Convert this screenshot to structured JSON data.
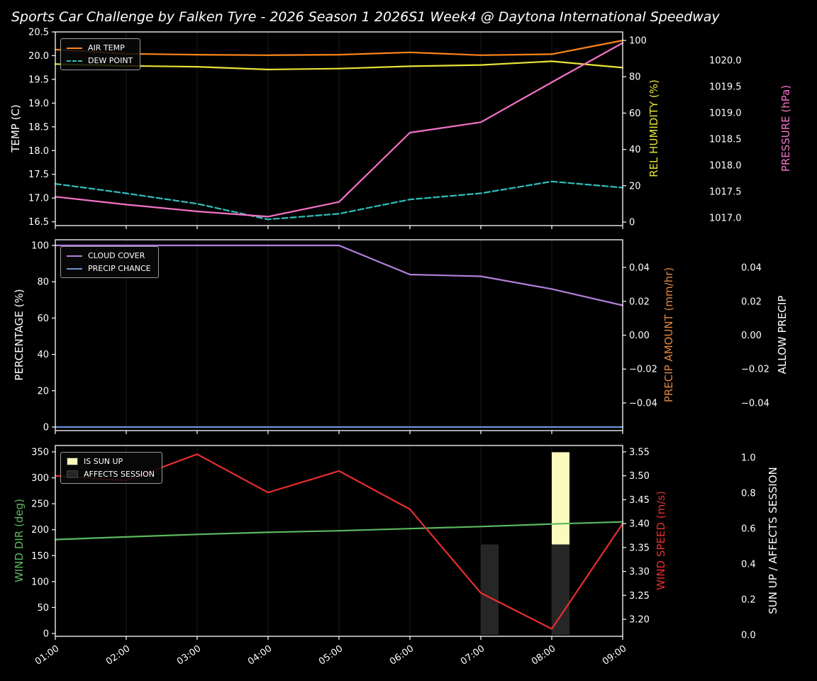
{
  "title": "Sports Car Challenge by Falken Tyre - 2026 Season 1 2026S1 Week4 @ Daytona International Speedway",
  "colors": {
    "background": "#000000",
    "text": "#ffffff",
    "frame": "#ffffff",
    "grid": "#1b1b1b"
  },
  "chart_data": {
    "type": "line",
    "x": [
      "01:00",
      "02:00",
      "03:00",
      "04:00",
      "05:00",
      "06:00",
      "07:00",
      "08:00",
      "09:00"
    ],
    "panels": [
      {
        "id": "temperature-humidity-pressure",
        "axes": {
          "left": {
            "label": "TEMP (C)",
            "color": "#ffffff",
            "range": [
              16.42,
              20.5
            ],
            "ticks": {
              "values": [
                16.5,
                17.0,
                17.5,
                18.0,
                18.5,
                19.0,
                19.5,
                20.0,
                20.5
              ],
              "labels": [
                "16.5",
                "17.0",
                "17.5",
                "18.0",
                "18.5",
                "19.0",
                "19.5",
                "20.0",
                "20.5"
              ]
            }
          },
          "right1": {
            "label": "REL HUMIDITY (%)",
            "color": "#e8e337",
            "range": [
              -1.95,
              104.69
            ],
            "ticks": {
              "values": [
                0,
                20,
                40,
                60,
                80,
                100
              ],
              "labels": [
                "0",
                "20",
                "40",
                "60",
                "80",
                "100"
              ]
            }
          },
          "right2": {
            "label": "PRESSURE (hPa)",
            "color": "#f472c6",
            "range": [
              1016.85,
              1020.54
            ],
            "ticks": {
              "values": [
                1017.0,
                1017.5,
                1018.0,
                1018.5,
                1019.0,
                1019.5,
                1020.0
              ],
              "labels": [
                "1017.0",
                "1017.5",
                "1018.0",
                "1018.5",
                "1019.0",
                "1019.5",
                "1020.0"
              ]
            }
          }
        },
        "series": [
          {
            "name": "AIR TEMP",
            "data_name": "air-temp-line",
            "axis": "left",
            "color": "#ff8519",
            "dash": false,
            "values": [
              20.13,
              20.04,
              20.02,
              20.01,
              20.02,
              20.07,
              20.01,
              20.03,
              20.32
            ]
          },
          {
            "name": "DEW POINT",
            "data_name": "dew-point-line",
            "axis": "left",
            "color": "#2fc0bc",
            "dash": true,
            "values": [
              17.3,
              17.1,
              16.88,
              16.55,
              16.67,
              16.97,
              17.1,
              17.35,
              17.22
            ]
          },
          {
            "name": "REL HUMIDITY",
            "data_name": "rel-humidity-line",
            "axis": "right1",
            "color": "#e8e337",
            "dash": false,
            "values": [
              87,
              86,
              85.5,
              84,
              84.5,
              85.8,
              86.5,
              88.5,
              85
            ]
          },
          {
            "name": "PRESSURE",
            "data_name": "pressure-line",
            "axis": "right2",
            "color": "#f472c6",
            "dash": false,
            "values": [
              1017.4,
              1017.25,
              1017.12,
              1017.02,
              1017.3,
              1018.62,
              1018.82,
              1019.58,
              1020.33
            ]
          }
        ],
        "legend": [
          {
            "label": "AIR TEMP",
            "swatch": "line",
            "color": "#ff8519",
            "dash": false
          },
          {
            "label": "DEW POINT",
            "swatch": "line",
            "color": "#2fc0bc",
            "dash": true
          }
        ]
      },
      {
        "id": "cloud-precip",
        "axes": {
          "left": {
            "label": "PERCENTAGE (%)",
            "color": "#ffffff",
            "range": [
              -1.95,
              103.12
            ],
            "ticks": {
              "values": [
                0,
                20,
                40,
                60,
                80,
                100
              ],
              "labels": [
                "0",
                "20",
                "40",
                "60",
                "80",
                "100"
              ]
            }
          },
          "right1": {
            "label": "PRECIP AMOUNT (mm/hr)",
            "color": "#e0853c",
            "range": [
              -0.05634,
              0.05634
            ],
            "ticks": {
              "values": [
                0.04,
                0.02,
                0.0,
                -0.02,
                -0.04
              ],
              "labels": [
                "0.04",
                "0.02",
                "0.00",
                "−0.02",
                "−0.04"
              ]
            }
          },
          "right2": {
            "label": "ALLOW PRECIP",
            "color": "#ffffff",
            "range": [
              -0.05634,
              0.05634
            ],
            "ticks": {
              "values": [
                0.04,
                0.02,
                0.0,
                -0.02,
                -0.04
              ],
              "labels": [
                "0.04",
                "0.02",
                "0.00",
                "−0.02",
                "−0.04"
              ]
            }
          }
        },
        "series": [
          {
            "name": "CLOUD COVER",
            "data_name": "cloud-cover-line",
            "axis": "left",
            "color": "#b17fd9",
            "dash": false,
            "values": [
              100,
              100,
              100,
              100,
              100,
              84,
              83,
              76,
              67
            ]
          },
          {
            "name": "PRECIP CHANCE",
            "data_name": "precip-chance-line",
            "axis": "left",
            "color": "#6b93d6",
            "dash": false,
            "values": [
              0,
              0,
              0,
              0,
              0,
              0,
              0,
              0,
              0
            ]
          }
        ],
        "legend": [
          {
            "label": "CLOUD COVER",
            "swatch": "line",
            "color": "#b17fd9",
            "dash": false
          },
          {
            "label": "PRECIP CHANCE",
            "swatch": "line",
            "color": "#6b93d6",
            "dash": false
          }
        ]
      },
      {
        "id": "wind-sun",
        "axes": {
          "left": {
            "label": "WIND DIR (deg)",
            "color": "#5cb85f",
            "range": [
              -5.5,
              362.3
            ],
            "ticks": {
              "values": [
                0,
                50,
                100,
                150,
                200,
                250,
                300,
                350
              ],
              "labels": [
                "0",
                "50",
                "100",
                "150",
                "200",
                "250",
                "300",
                "350"
              ]
            }
          },
          "right1": {
            "label": "WIND SPEED (m/s)",
            "color": "#e62e2e",
            "range": [
              3.1644,
              3.5633
            ],
            "ticks": {
              "values": [
                3.2,
                3.25,
                3.3,
                3.35,
                3.4,
                3.45,
                3.5,
                3.55
              ],
              "labels": [
                "3.20",
                "3.25",
                "3.30",
                "3.35",
                "3.40",
                "3.45",
                "3.50",
                "3.55"
              ]
            }
          },
          "right2": {
            "label": "SUN UP / AFFECTS SESSION",
            "color": "#ffffff",
            "range": [
              -0.008,
              1.068
            ],
            "ticks": {
              "values": [
                0.0,
                0.2,
                0.4,
                0.6,
                0.8,
                1.0
              ],
              "labels": [
                "0.0",
                "0.2",
                "0.4",
                "0.6",
                "0.8",
                "1.0"
              ]
            }
          }
        },
        "series": [
          {
            "name": "WIND DIR",
            "data_name": "wind-dir-line",
            "axis": "left",
            "color": "#5cb85f",
            "dash": false,
            "values": [
              181,
              186,
              191,
              195,
              198,
              202,
              206,
              211,
              215
            ]
          },
          {
            "name": "WIND SPEED",
            "data_name": "wind-speed-line",
            "axis": "right1",
            "color": "#e62e2e",
            "dash": false,
            "values": [
              3.5,
              3.49,
              3.545,
              3.465,
              3.51,
              3.43,
              3.255,
              3.18,
              3.4
            ]
          }
        ],
        "bars": [
          {
            "name": "IS SUN UP",
            "data_name": "is-sun-up-bar",
            "axis": "right2",
            "color": "#fcfabc",
            "x": [
              "08:00"
            ],
            "from": 0.5,
            "to": 1.03
          },
          {
            "name": "AFFECTS SESSION",
            "data_name": "affects-session-bar",
            "axis": "right2",
            "color": "#262626",
            "x": [
              "07:00",
              "08:00"
            ],
            "from": 0.0,
            "to": 0.51
          }
        ],
        "flags": {
          "is_sun_up": [
            false,
            false,
            false,
            false,
            false,
            false,
            false,
            true,
            false
          ],
          "affects_session": [
            false,
            false,
            false,
            false,
            false,
            false,
            true,
            true,
            false
          ]
        },
        "legend": [
          {
            "label": "IS SUN UP",
            "swatch": "patch",
            "color": "#fcfabc"
          },
          {
            "label": "AFFECTS SESSION",
            "swatch": "patch",
            "color": "#262626"
          }
        ]
      }
    ]
  }
}
